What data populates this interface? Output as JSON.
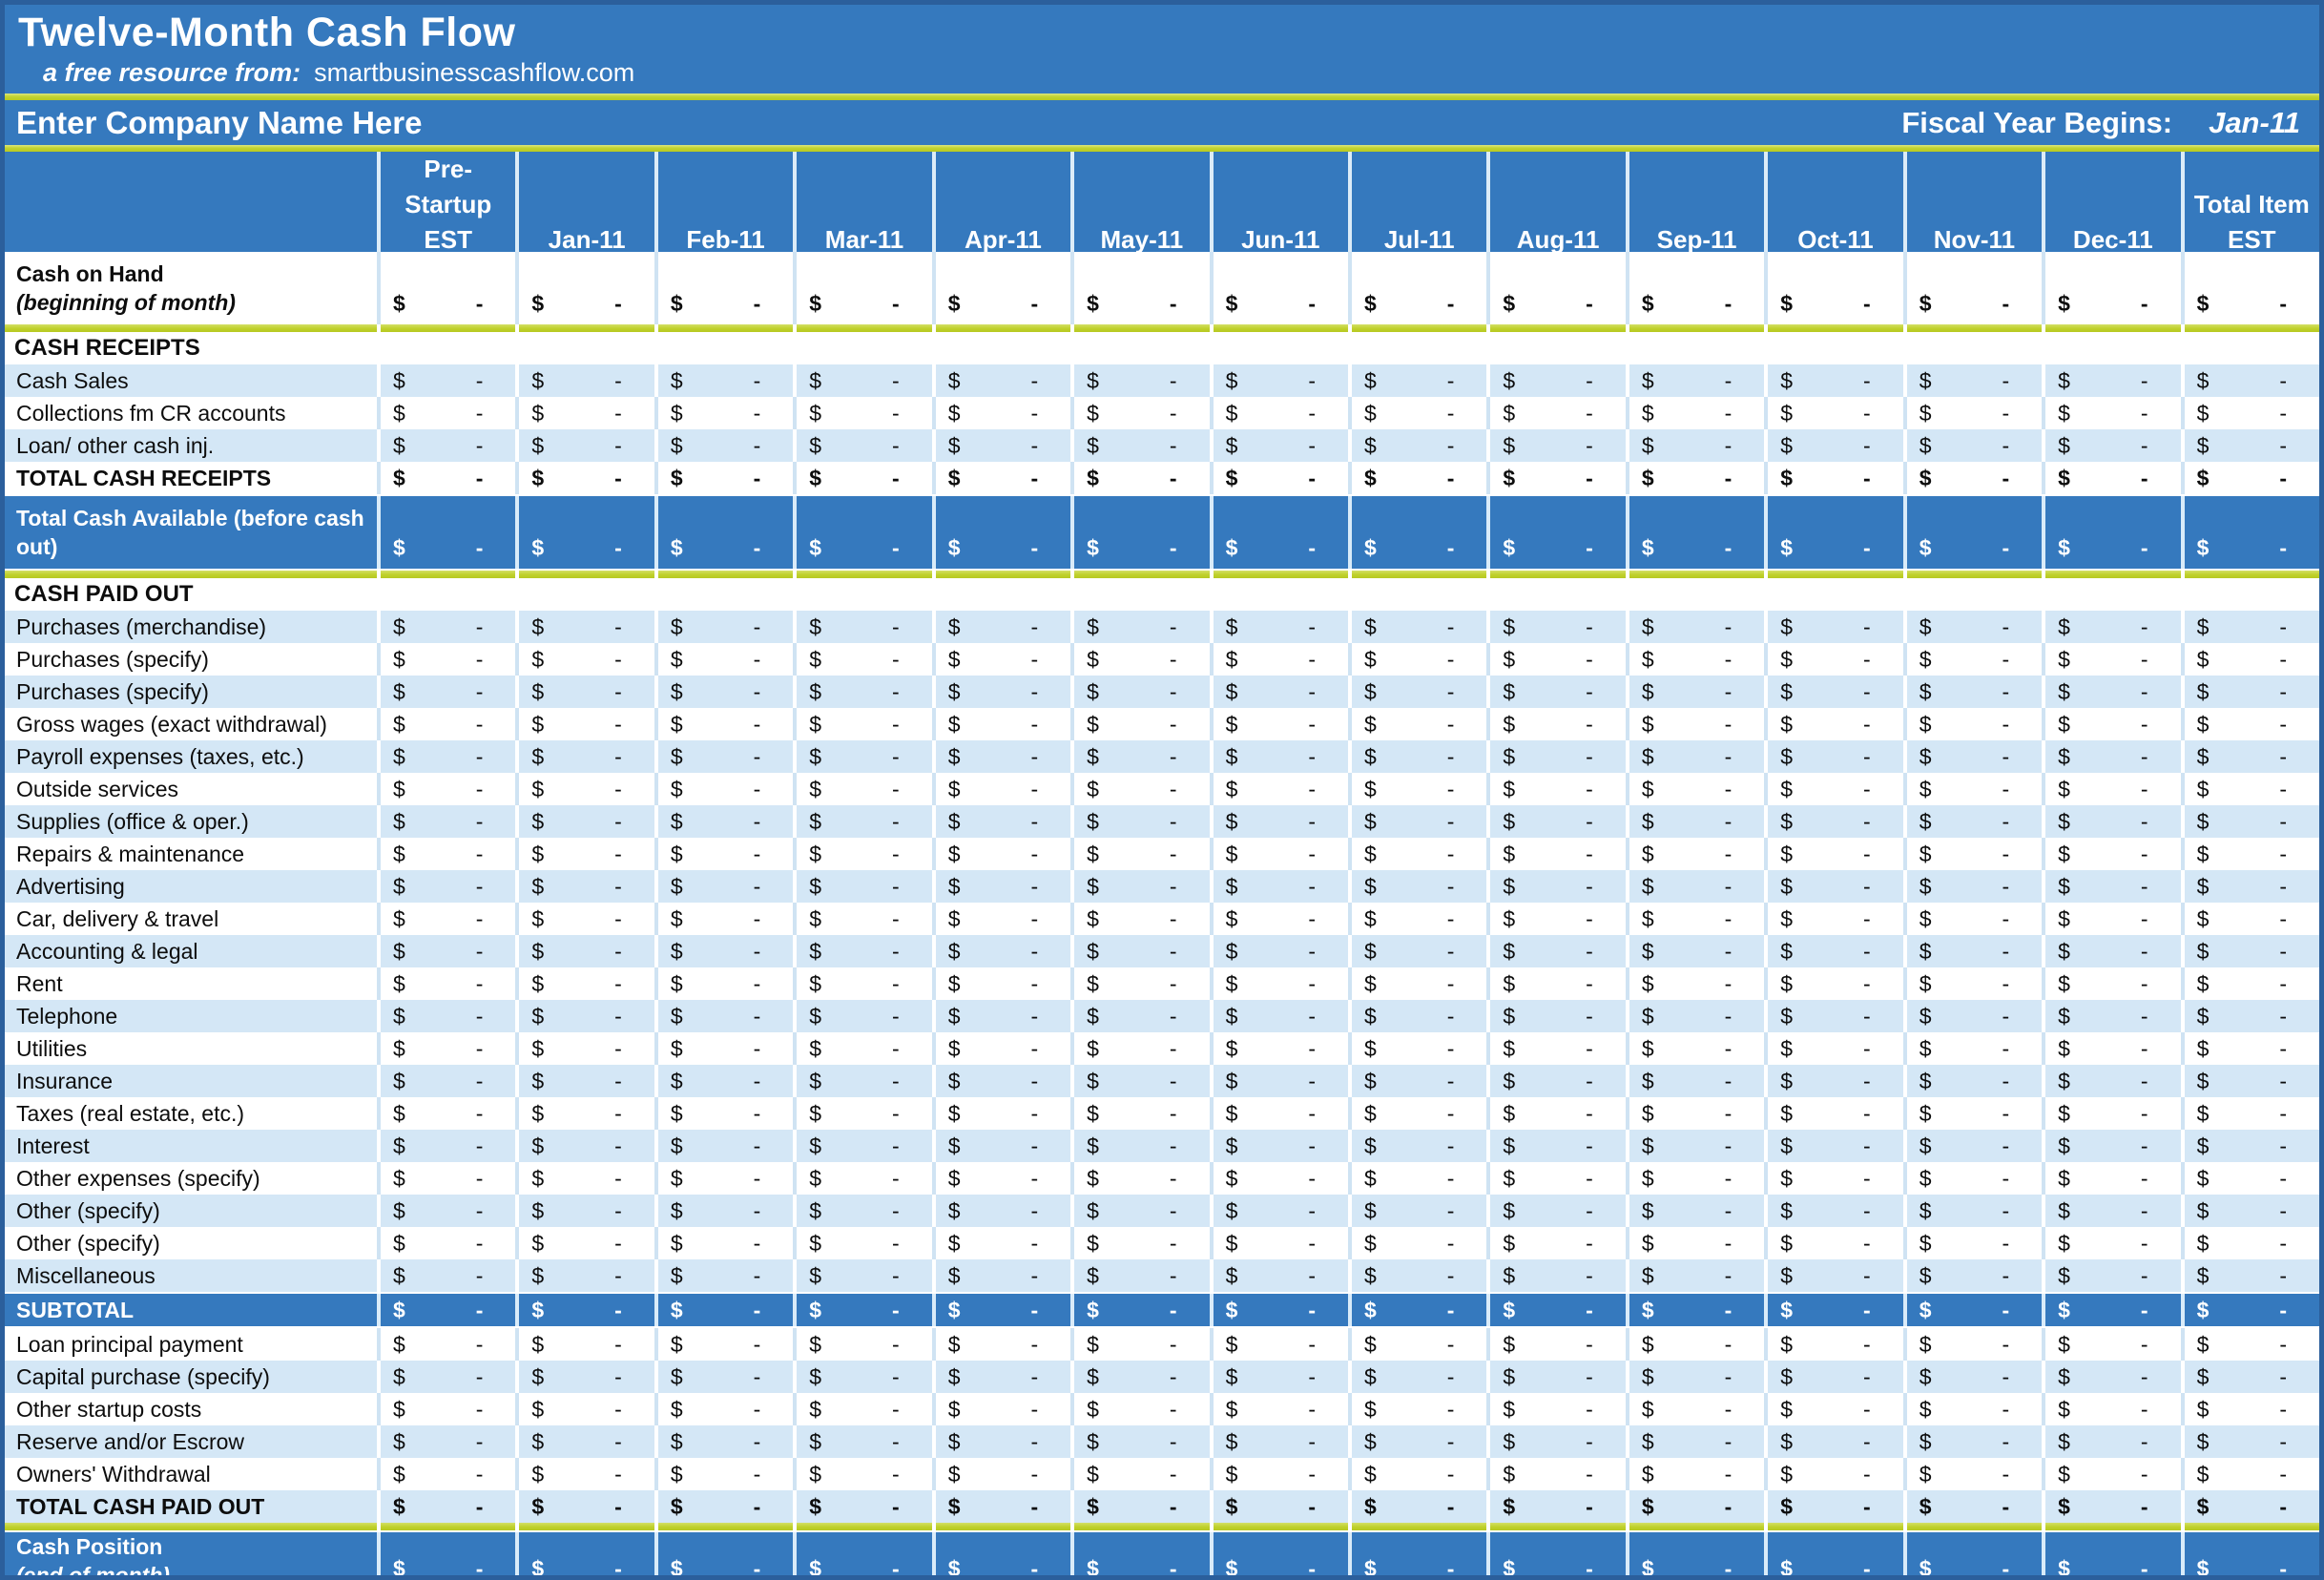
{
  "header": {
    "title": "Twelve-Month Cash Flow",
    "subtitle_prefix": "a free resource from:",
    "subtitle_site": "smartbusinesscashflow.com",
    "company_name": "Enter Company Name Here",
    "fiscal_label": "Fiscal Year Begins:",
    "fiscal_value": "Jan-11"
  },
  "colors": {
    "main_blue": "#3579be",
    "border_blue": "#2b5f9c",
    "light_blue_row": "#d4e7f6",
    "green_line": "#bfd02b",
    "text": "#0d0d0d",
    "white": "#ffffff"
  },
  "table": {
    "columns": [
      "Pre-\nStartup\nEST",
      "Jan-11",
      "Feb-11",
      "Mar-11",
      "Apr-11",
      "May-11",
      "Jun-11",
      "Jul-11",
      "Aug-11",
      "Sep-11",
      "Oct-11",
      "Nov-11",
      "Dec-11",
      "Total Item\nEST"
    ],
    "cell": {
      "currency": "$",
      "amount": "-"
    },
    "rows": [
      {
        "type": "tall",
        "shade": "white",
        "bold": true,
        "label": "Cash on Hand",
        "sublabel": "(beginning of month)",
        "values": true
      },
      {
        "type": "green"
      },
      {
        "type": "section",
        "label": "CASH RECEIPTS"
      },
      {
        "type": "data",
        "shade": "blue",
        "label": "Cash Sales",
        "values": true
      },
      {
        "type": "data",
        "shade": "white",
        "label": "Collections fm CR accounts",
        "values": true
      },
      {
        "type": "data",
        "shade": "blue",
        "label": "Loan/ other cash inj.",
        "values": true
      },
      {
        "type": "data",
        "shade": "white",
        "bold": true,
        "label": "TOTAL CASH RECEIPTS",
        "values": true
      },
      {
        "type": "tall",
        "shade": "dark",
        "label": "Total Cash Available (before cash out)",
        "values": true
      },
      {
        "type": "green"
      },
      {
        "type": "section",
        "label": "CASH PAID OUT"
      },
      {
        "type": "data",
        "shade": "blue",
        "label": "Purchases (merchandise)",
        "values": true
      },
      {
        "type": "data",
        "shade": "white",
        "label": "Purchases (specify)",
        "values": true
      },
      {
        "type": "data",
        "shade": "blue",
        "label": "Purchases (specify)",
        "values": true
      },
      {
        "type": "data",
        "shade": "white",
        "label": "Gross wages (exact withdrawal)",
        "values": true
      },
      {
        "type": "data",
        "shade": "blue",
        "label": "Payroll expenses (taxes, etc.)",
        "values": true
      },
      {
        "type": "data",
        "shade": "white",
        "label": "Outside services",
        "values": true
      },
      {
        "type": "data",
        "shade": "blue",
        "label": "Supplies (office & oper.)",
        "values": true
      },
      {
        "type": "data",
        "shade": "white",
        "label": "Repairs & maintenance",
        "values": true
      },
      {
        "type": "data",
        "shade": "blue",
        "label": "Advertising",
        "values": true
      },
      {
        "type": "data",
        "shade": "white",
        "label": "Car, delivery & travel",
        "values": true
      },
      {
        "type": "data",
        "shade": "blue",
        "label": "Accounting & legal",
        "values": true
      },
      {
        "type": "data",
        "shade": "white",
        "label": "Rent",
        "values": true
      },
      {
        "type": "data",
        "shade": "blue",
        "label": "Telephone",
        "values": true
      },
      {
        "type": "data",
        "shade": "white",
        "label": "Utilities",
        "values": true
      },
      {
        "type": "data",
        "shade": "blue",
        "label": "Insurance",
        "values": true
      },
      {
        "type": "data",
        "shade": "white",
        "label": "Taxes (real estate, etc.)",
        "values": true
      },
      {
        "type": "data",
        "shade": "blue",
        "label": "Interest",
        "values": true
      },
      {
        "type": "data",
        "shade": "white",
        "label": "Other expenses (specify)",
        "values": true
      },
      {
        "type": "data",
        "shade": "blue",
        "label": "Other (specify)",
        "values": true
      },
      {
        "type": "data",
        "shade": "white",
        "label": "Other (specify)",
        "values": true
      },
      {
        "type": "data",
        "shade": "blue",
        "label": "Miscellaneous",
        "values": true
      },
      {
        "type": "data",
        "shade": "dark",
        "bold": true,
        "label": "SUBTOTAL",
        "values": true
      },
      {
        "type": "data",
        "shade": "white",
        "label": "Loan principal payment",
        "values": true
      },
      {
        "type": "data",
        "shade": "blue",
        "label": "Capital purchase (specify)",
        "values": true
      },
      {
        "type": "data",
        "shade": "white",
        "label": "Other startup costs",
        "values": true
      },
      {
        "type": "data",
        "shade": "blue",
        "label": "Reserve and/or Escrow",
        "values": true
      },
      {
        "type": "data",
        "shade": "white",
        "label": "Owners' Withdrawal",
        "values": true
      },
      {
        "type": "data",
        "shade": "blue",
        "bold": true,
        "label": "TOTAL CASH PAID OUT",
        "values": true
      },
      {
        "type": "green"
      },
      {
        "type": "cashpos",
        "shade": "dark",
        "label": "Cash Position",
        "sublabel": "(end of month)",
        "values": true
      }
    ]
  }
}
